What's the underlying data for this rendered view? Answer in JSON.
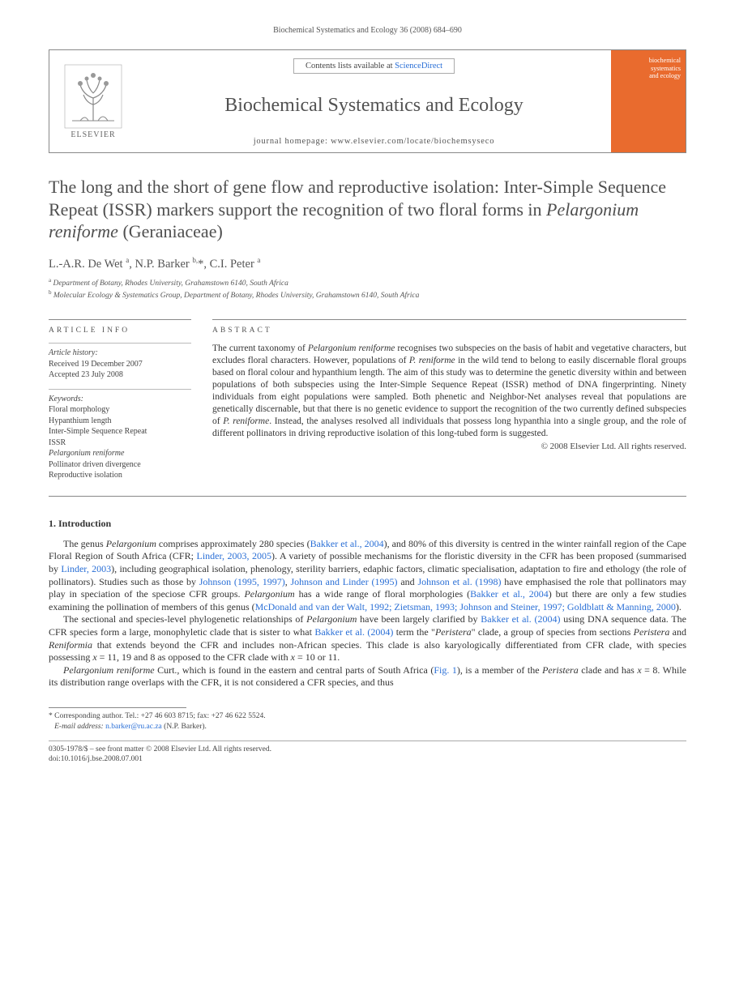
{
  "page_header": "Biochemical Systematics and Ecology 36 (2008) 684–690",
  "journal_box": {
    "contents_prefix": "Contents lists available at ",
    "contents_link": "ScienceDirect",
    "journal_name": "Biochemical Systematics and Ecology",
    "homepage": "journal homepage: www.elsevier.com/locate/biochemsyseco",
    "elsevier": "ELSEVIER",
    "cover_line1": "biochemical",
    "cover_line2": "systematics",
    "cover_line3": "and ecology"
  },
  "title_pre": "The long and the short of gene flow and reproductive isolation: Inter-Simple Sequence Repeat (ISSR) markers support the recognition of two floral forms in ",
  "title_ital": "Pelargonium reniforme",
  "title_post": " (Geraniaceae)",
  "authors_html": "L.-A.R. De Wet <sup>a</sup>, N.P. Barker <sup>b,</sup>*, C.I. Peter <sup>a</sup>",
  "affil_a": "Department of Botany, Rhodes University, Grahamstown 6140, South Africa",
  "affil_b": "Molecular Ecology & Systematics Group, Department of Botany, Rhodes University, Grahamstown 6140, South Africa",
  "info": {
    "label": "ARTICLE INFO",
    "history_hd": "Article history:",
    "received": "Received 19 December 2007",
    "accepted": "Accepted 23 July 2008",
    "keywords_hd": "Keywords:",
    "kw1": "Floral morphology",
    "kw2": "Hypanthium length",
    "kw3": "Inter-Simple Sequence Repeat",
    "kw4": "ISSR",
    "kw5": "Pelargonium reniforme",
    "kw6": "Pollinator driven divergence",
    "kw7": "Reproductive isolation"
  },
  "abstract": {
    "label": "ABSTRACT",
    "text_1": "The current taxonomy of ",
    "ital_1": "Pelargonium reniforme",
    "text_2": " recognises two subspecies on the basis of habit and vegetative characters, but excludes floral characters. However, populations of ",
    "ital_2": "P. reniforme",
    "text_3": " in the wild tend to belong to easily discernable floral groups based on floral colour and hypanthium length. The aim of this study was to determine the genetic diversity within and between populations of both subspecies using the Inter-Simple Sequence Repeat (ISSR) method of DNA fingerprinting. Ninety individuals from eight populations were sampled. Both phenetic and Neighbor-Net analyses reveal that populations are genetically discernable, but that there is no genetic evidence to support the recognition of the two currently defined subspecies of ",
    "ital_3": "P. reniforme",
    "text_4": ". Instead, the analyses resolved all individuals that possess long hypanthia into a single group, and the role of different pollinators in driving reproductive isolation of this long-tubed form is suggested.",
    "copyright": "© 2008 Elsevier Ltd. All rights reserved."
  },
  "intro": {
    "heading": "1.  Introduction",
    "p1_a": "The genus ",
    "p1_ital1": "Pelargonium",
    "p1_b": " comprises approximately 280 species (",
    "p1_link1": "Bakker et al., 2004",
    "p1_c": "), and 80% of this diversity is centred in the winter rainfall region of the Cape Floral Region of South Africa (CFR; ",
    "p1_link2": "Linder, 2003, 2005",
    "p1_d": "). A variety of possible mechanisms for the floristic diversity in the CFR has been proposed (summarised by ",
    "p1_link3": "Linder, 2003",
    "p1_e": "), including geographical isolation, phenology, sterility barriers, edaphic factors, climatic specialisation, adaptation to fire and ethology (the role of pollinators). Studies such as those by ",
    "p1_link4": "Johnson (1995, 1997)",
    "p1_f": ", ",
    "p1_link5": "Johnson and Linder (1995)",
    "p1_g": " and ",
    "p1_link6": "Johnson et al. (1998)",
    "p1_h": " have emphasised the role that pollinators may play in speciation of the speciose CFR groups. ",
    "p1_ital2": "Pelargonium",
    "p1_i": " has a wide range of floral morphologies (",
    "p1_link7": "Bakker et al., 2004",
    "p1_j": ") but there are only a few studies examining the pollination of members of this genus (",
    "p1_link8": "McDonald and van der Walt, 1992; Zietsman, 1993; Johnson and Steiner, 1997; Goldblatt & Manning, 2000",
    "p1_k": ").",
    "p2_a": "The sectional and species-level phylogenetic relationships of ",
    "p2_ital1": "Pelargonium",
    "p2_b": " have been largely clarified by ",
    "p2_link1": "Bakker et al. (2004)",
    "p2_c": " using DNA sequence data. The CFR species form a large, monophyletic clade that is sister to what ",
    "p2_link2": "Bakker et al. (2004)",
    "p2_d": " term the \"",
    "p2_ital2": "Peristera",
    "p2_e": "\" clade, a group of species from sections ",
    "p2_ital3": "Peristera",
    "p2_f": " and ",
    "p2_ital4": "Reniformia",
    "p2_g": " that extends beyond the CFR and includes non-African species. This clade is also karyologically differentiated from CFR clade, with species possessing ",
    "p2_ital5": "x",
    "p2_h": " = 11, 19 and 8 as opposed to the CFR clade with ",
    "p2_ital6": "x",
    "p2_i": " = 10 or 11.",
    "p3_ital1": "Pelargonium reniforme",
    "p3_a": " Curt., which is found in the eastern and central parts of South Africa (",
    "p3_link1": "Fig. 1",
    "p3_b": "), is a member of the ",
    "p3_ital2": "Peristera",
    "p3_c": " clade and has ",
    "p3_ital3": "x",
    "p3_d": " = 8. While its distribution range overlaps with the CFR, it is not considered a CFR species, and thus"
  },
  "footnote": {
    "corr": "* Corresponding author. Tel.: +27 46 603 8715; fax: +27 46 622 5524.",
    "email_lbl": "E-mail address:",
    "email": "n.barker@ru.ac.za",
    "email_who": " (N.P. Barker)."
  },
  "bottom": {
    "l1": "0305-1978/$ – see front matter © 2008 Elsevier Ltd. All rights reserved.",
    "l2": "doi:10.1016/j.bse.2008.07.001"
  }
}
